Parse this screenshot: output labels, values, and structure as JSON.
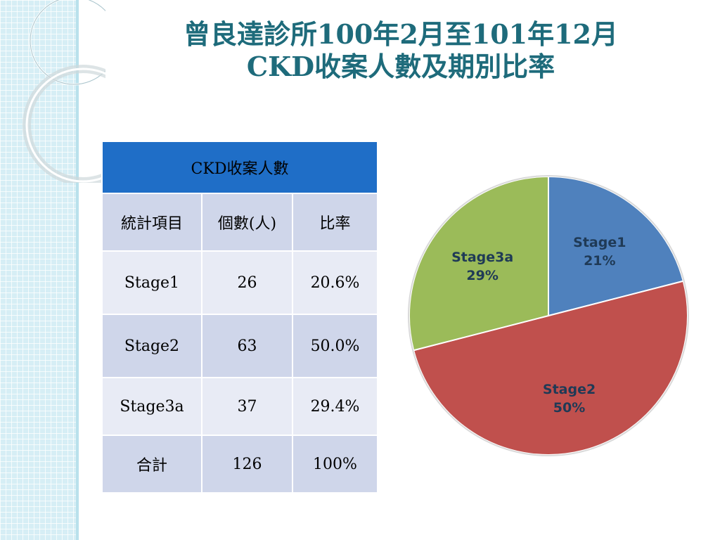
{
  "title": {
    "line1": "曾良達診所100年2月至101年12月",
    "line2": "CKD收案人數及期別比率"
  },
  "table": {
    "header": "CKD收案人數",
    "columns": [
      "統計項目",
      "個數(人)",
      "比率"
    ],
    "rows": [
      {
        "item": "Stage1",
        "count": "26",
        "ratio": "20.6%"
      },
      {
        "item": "Stage2",
        "count": "63",
        "ratio": "50.0%"
      },
      {
        "item": "Stage3a",
        "count": "37",
        "ratio": "29.4%"
      }
    ],
    "total": {
      "item": "合計",
      "count": "126",
      "ratio": "100%"
    }
  },
  "chart_data": {
    "type": "pie",
    "categories": [
      "Stage1",
      "Stage2",
      "Stage3a"
    ],
    "values": [
      21,
      50,
      29
    ],
    "value_labels": [
      "21%",
      "50%",
      "29%"
    ],
    "colors": [
      "#4f81bd",
      "#c0504d",
      "#9bbb59"
    ],
    "title": ""
  }
}
